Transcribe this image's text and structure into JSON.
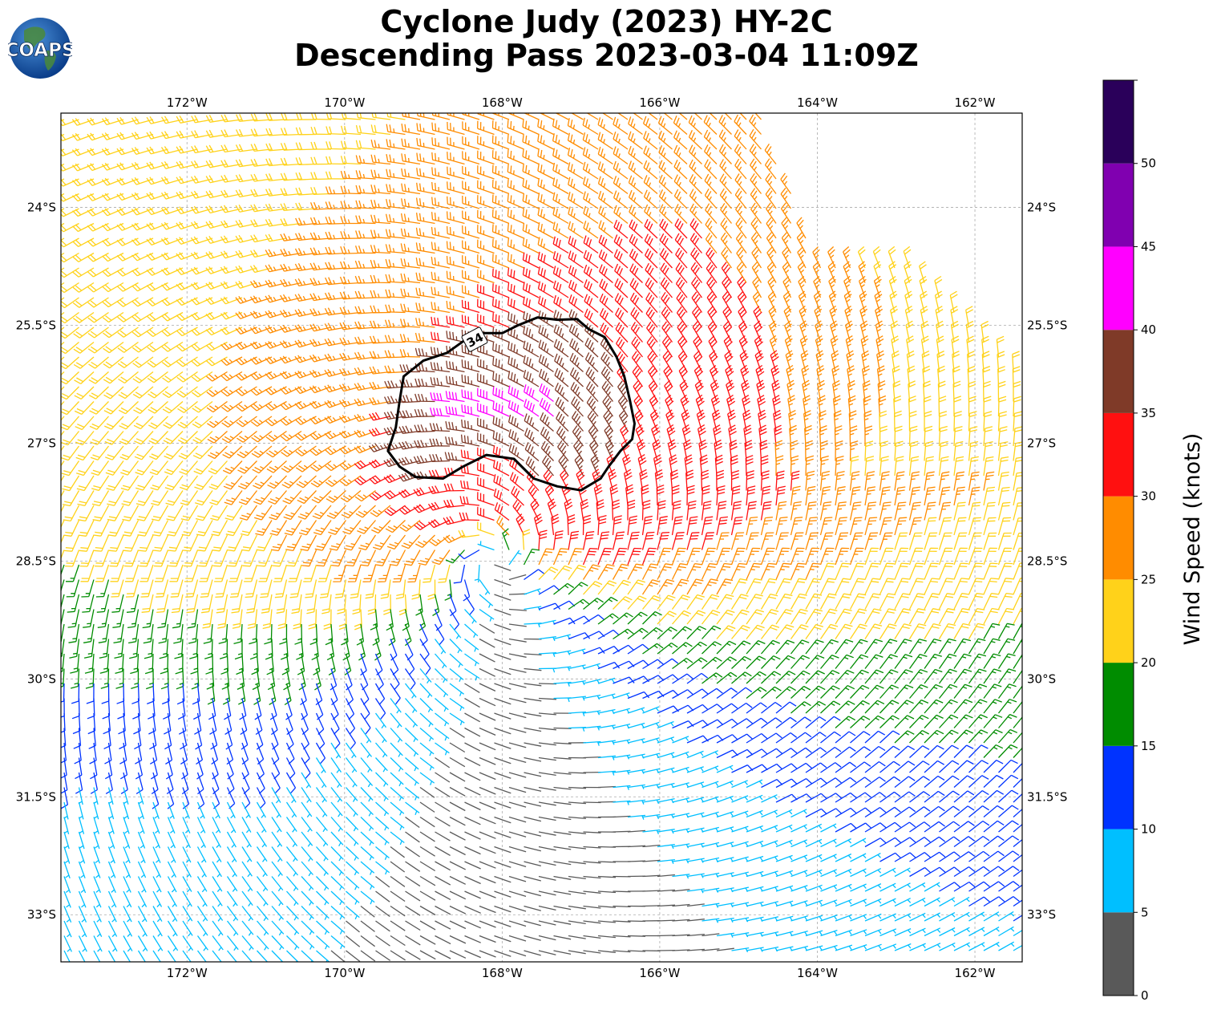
{
  "title_line1": "Cyclone Judy (2023) HY-2C",
  "title_line2": "Descending Pass 2023-03-04 11:09Z",
  "logo_text": "COAPS",
  "map": {
    "lon_range": [
      -173.6,
      -161.4
    ],
    "lat_range": [
      -33.6,
      -22.8
    ],
    "lon_ticks": [
      {
        "value": -172,
        "label": "172°W"
      },
      {
        "value": -170,
        "label": "170°W"
      },
      {
        "value": -168,
        "label": "168°W"
      },
      {
        "value": -166,
        "label": "166°W"
      },
      {
        "value": -164,
        "label": "164°W"
      },
      {
        "value": -162,
        "label": "162°W"
      }
    ],
    "lat_ticks": [
      {
        "value": -24,
        "label": "24°S"
      },
      {
        "value": -25.5,
        "label": "25.5°S"
      },
      {
        "value": -27,
        "label": "27°S"
      },
      {
        "value": -28.5,
        "label": "28.5°S"
      },
      {
        "value": -30,
        "label": "30°S"
      },
      {
        "value": -31.5,
        "label": "31.5°S"
      },
      {
        "value": -33,
        "label": "33°S"
      }
    ],
    "gridlines": true,
    "cyclone_center": {
      "lon": -168.1,
      "lat": -28.5
    },
    "contour": {
      "level_label": "34",
      "level_knots": 34,
      "polygon": [
        [
          -168.35,
          -25.6
        ],
        [
          -168.0,
          -25.6
        ],
        [
          -167.8,
          -25.5
        ],
        [
          -167.55,
          -25.4
        ],
        [
          -167.3,
          -25.43
        ],
        [
          -167.05,
          -25.42
        ],
        [
          -166.9,
          -25.55
        ],
        [
          -166.7,
          -25.65
        ],
        [
          -166.55,
          -25.9
        ],
        [
          -166.45,
          -26.15
        ],
        [
          -166.38,
          -26.45
        ],
        [
          -166.32,
          -26.75
        ],
        [
          -166.35,
          -26.95
        ],
        [
          -166.5,
          -27.1
        ],
        [
          -166.65,
          -27.3
        ],
        [
          -166.75,
          -27.45
        ],
        [
          -167.0,
          -27.6
        ],
        [
          -167.3,
          -27.55
        ],
        [
          -167.6,
          -27.45
        ],
        [
          -167.85,
          -27.2
        ],
        [
          -168.2,
          -27.15
        ],
        [
          -168.5,
          -27.3
        ],
        [
          -168.75,
          -27.45
        ],
        [
          -169.1,
          -27.43
        ],
        [
          -169.3,
          -27.3
        ],
        [
          -169.45,
          -27.1
        ],
        [
          -169.35,
          -26.8
        ],
        [
          -169.3,
          -26.45
        ],
        [
          -169.25,
          -26.15
        ],
        [
          -169.0,
          -25.95
        ],
        [
          -168.7,
          -25.85
        ],
        [
          -168.35,
          -25.6
        ]
      ]
    }
  },
  "colorbar": {
    "label": "Wind Speed (knots)",
    "ticks": [
      "0",
      "5",
      "10",
      "15",
      "20",
      "25",
      "30",
      "35",
      "40",
      "45",
      "50"
    ],
    "bins": [
      {
        "min": 0,
        "max": 5,
        "color": "#595959"
      },
      {
        "min": 5,
        "max": 10,
        "color": "#00bfff"
      },
      {
        "min": 10,
        "max": 15,
        "color": "#0033ff"
      },
      {
        "min": 15,
        "max": 20,
        "color": "#008c00"
      },
      {
        "min": 20,
        "max": 25,
        "color": "#ffd21a"
      },
      {
        "min": 25,
        "max": 30,
        "color": "#ff8c00"
      },
      {
        "min": 30,
        "max": 35,
        "color": "#ff1010"
      },
      {
        "min": 35,
        "max": 40,
        "color": "#7f3a28"
      },
      {
        "min": 40,
        "max": 45,
        "color": "#ff00ff"
      },
      {
        "min": 45,
        "max": 50,
        "color": "#8000b0"
      },
      {
        "min": 50,
        "max": 55,
        "color": "#2a005a"
      }
    ]
  }
}
